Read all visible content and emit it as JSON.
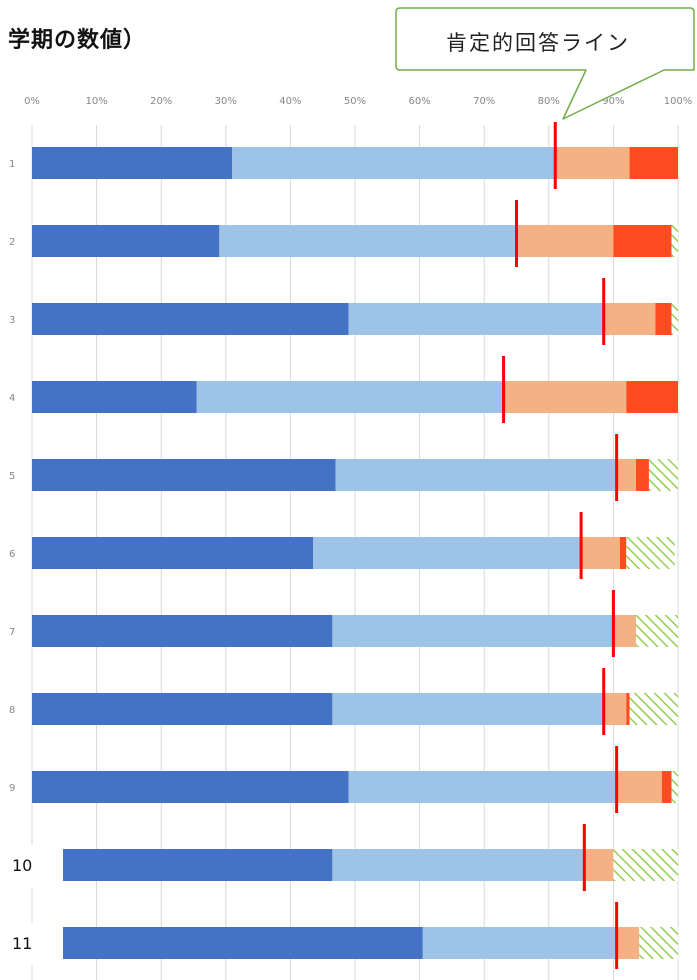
{
  "header": {
    "title": "学期の数値）"
  },
  "callout": {
    "label": "肯定的回答ライン"
  },
  "chart_data": {
    "type": "bar",
    "orientation": "horizontal",
    "stacked": true,
    "percent": true,
    "xlim": [
      0,
      100
    ],
    "x_ticks": [
      "0%",
      "10%",
      "20%",
      "30%",
      "40%",
      "50%",
      "60%",
      "70%",
      "80%",
      "90%",
      "100%"
    ],
    "categories": [
      "1",
      "2",
      "3",
      "4",
      "5",
      "6",
      "7",
      "8",
      "9",
      "10",
      "11"
    ],
    "grid": true,
    "series": [
      {
        "color": "#4472c4",
        "values": [
          31,
          29,
          49,
          25.5,
          47,
          43.5,
          46.5,
          46.5,
          49,
          46.5,
          60.5
        ]
      },
      {
        "color": "#9dc3e6",
        "values": [
          50,
          46,
          39.5,
          47.5,
          43.5,
          41.5,
          43.5,
          42,
          41.5,
          39,
          30
        ]
      },
      {
        "color": "#f4b183",
        "values": [
          11.5,
          15,
          8,
          19,
          3,
          6,
          3.5,
          3.5,
          7,
          4.5,
          3.5
        ]
      },
      {
        "color": "#ff4b1f",
        "values": [
          7.5,
          9,
          2.5,
          8,
          2,
          1,
          0,
          0.5,
          1.5,
          0,
          0
        ]
      },
      {
        "color": "#92d050",
        "pattern": "hatch",
        "values": [
          0,
          1,
          1,
          0,
          4.5,
          7.5,
          6.5,
          7.5,
          1,
          10,
          6
        ]
      }
    ],
    "positive_line": {
      "color": "#ff0000",
      "values": [
        81,
        75,
        88.5,
        73,
        90.5,
        85,
        90,
        88.5,
        90.5,
        85.5,
        90.5
      ]
    }
  }
}
